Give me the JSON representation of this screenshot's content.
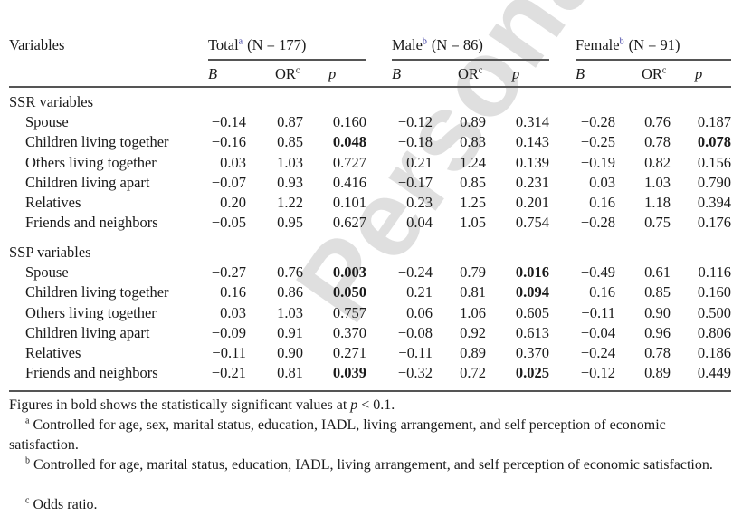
{
  "watermark": "Personal copy",
  "header": {
    "variables": "Variables",
    "groups": [
      {
        "name": "Total",
        "sup": "a",
        "n": "(N = 177)"
      },
      {
        "name": "Male",
        "sup": "b",
        "n": "(N = 86)"
      },
      {
        "name": "Female",
        "sup": "b",
        "n": "(N = 91)"
      }
    ],
    "sub": {
      "b": "B",
      "or": "OR",
      "or_sup": "c",
      "p": "p"
    }
  },
  "sections": [
    {
      "title": "SSR variables",
      "rows": [
        {
          "label": "Spouse",
          "values": [
            "−0.14",
            "0.87",
            "0.160",
            "−0.12",
            "0.89",
            "0.314",
            "−0.28",
            "0.76",
            "0.187"
          ],
          "bold": []
        },
        {
          "label": "Children living together",
          "values": [
            "−0.16",
            "0.85",
            "0.048",
            "−0.18",
            "0.83",
            "0.143",
            "−0.25",
            "0.78",
            "0.078"
          ],
          "bold": [
            2,
            8
          ]
        },
        {
          "label": "Others living together",
          "values": [
            "0.03",
            "1.03",
            "0.727",
            "0.21",
            "1.24",
            "0.139",
            "−0.19",
            "0.82",
            "0.156"
          ],
          "bold": []
        },
        {
          "label": "Children living apart",
          "values": [
            "−0.07",
            "0.93",
            "0.416",
            "−0.17",
            "0.85",
            "0.231",
            "0.03",
            "1.03",
            "0.790"
          ],
          "bold": []
        },
        {
          "label": "Relatives",
          "values": [
            "0.20",
            "1.22",
            "0.101",
            "0.23",
            "1.25",
            "0.201",
            "0.16",
            "1.18",
            "0.394"
          ],
          "bold": []
        },
        {
          "label": "Friends and neighbors",
          "values": [
            "−0.05",
            "0.95",
            "0.627",
            "0.04",
            "1.05",
            "0.754",
            "−0.28",
            "0.75",
            "0.176"
          ],
          "bold": []
        }
      ]
    },
    {
      "title": "SSP variables",
      "rows": [
        {
          "label": "Spouse",
          "values": [
            "−0.27",
            "0.76",
            "0.003",
            "−0.24",
            "0.79",
            "0.016",
            "−0.49",
            "0.61",
            "0.116"
          ],
          "bold": [
            2,
            5
          ]
        },
        {
          "label": "Children living together",
          "values": [
            "−0.16",
            "0.86",
            "0.050",
            "−0.21",
            "0.81",
            "0.094",
            "−0.16",
            "0.85",
            "0.160"
          ],
          "bold": [
            2,
            5
          ]
        },
        {
          "label": "Others living together",
          "values": [
            "0.03",
            "1.03",
            "0.757",
            "0.06",
            "1.06",
            "0.605",
            "−0.11",
            "0.90",
            "0.500"
          ],
          "bold": []
        },
        {
          "label": "Children living apart",
          "values": [
            "−0.09",
            "0.91",
            "0.370",
            "−0.08",
            "0.92",
            "0.613",
            "−0.04",
            "0.96",
            "0.806"
          ],
          "bold": []
        },
        {
          "label": "Relatives",
          "values": [
            "−0.11",
            "0.90",
            "0.271",
            "−0.11",
            "0.89",
            "0.370",
            "−0.24",
            "0.78",
            "0.186"
          ],
          "bold": []
        },
        {
          "label": "Friends and neighbors",
          "values": [
            "−0.21",
            "0.81",
            "0.039",
            "−0.32",
            "0.72",
            "0.025",
            "−0.12",
            "0.89",
            "0.449"
          ],
          "bold": [
            2,
            5
          ]
        }
      ]
    }
  ],
  "footnotes": {
    "bold_note_pre": "Figures in bold shows the statistically significant values at ",
    "bold_note_p": "p",
    "bold_note_post": " < 0.1.",
    "a_mark": "a",
    "a_text": " Controlled for age, sex, marital status, education, IADL, living arrangement, and self perception of economic satisfaction.",
    "b_mark": "b",
    "b_text": " Controlled for age, marital status, education, IADL, living arrangement, and self perception of economic satisfaction.",
    "c_mark": "c",
    "c_text": " Odds ratio."
  }
}
